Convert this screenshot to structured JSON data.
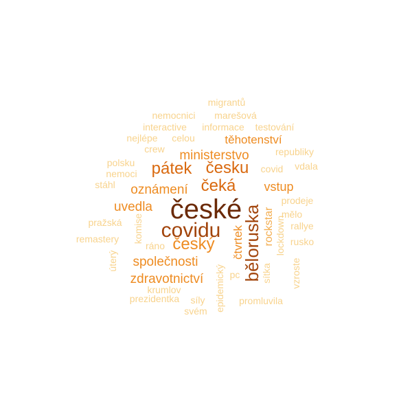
{
  "palette": {
    "darkest": "#6b2a07",
    "dark": "#a2450c",
    "strong": "#d9690f",
    "medium": "#ee8c22",
    "mid_light": "#f3ad4f",
    "light": "#f8d38d",
    "lightest": "#fbe4b0"
  },
  "words": [
    {
      "text": "české",
      "color": "darkest"
    },
    {
      "text": "covidu",
      "color": "dark"
    },
    {
      "text": "běloruska",
      "color": "dark"
    },
    {
      "text": "česku",
      "color": "strong"
    },
    {
      "text": "pátek",
      "color": "strong"
    },
    {
      "text": "čeká",
      "color": "strong"
    },
    {
      "text": "český",
      "color": "medium"
    },
    {
      "text": "oznámení",
      "color": "medium"
    },
    {
      "text": "ministerstvo",
      "color": "medium"
    },
    {
      "text": "těhotenství",
      "color": "medium"
    },
    {
      "text": "uvedla",
      "color": "medium"
    },
    {
      "text": "vstup",
      "color": "medium"
    },
    {
      "text": "společnosti",
      "color": "medium"
    },
    {
      "text": "zdravotnictví",
      "color": "medium"
    },
    {
      "text": "čtvrtek",
      "color": "medium"
    },
    {
      "text": "rockstar",
      "color": "mid_light"
    },
    {
      "text": "migrantů",
      "color": "light"
    },
    {
      "text": "nemocnici",
      "color": "light"
    },
    {
      "text": "marešová",
      "color": "light"
    },
    {
      "text": "interactive",
      "color": "light"
    },
    {
      "text": "informace",
      "color": "light"
    },
    {
      "text": "testování",
      "color": "light"
    },
    {
      "text": "nejlépe",
      "color": "light"
    },
    {
      "text": "celou",
      "color": "light"
    },
    {
      "text": "crew",
      "color": "light"
    },
    {
      "text": "republiky",
      "color": "light"
    },
    {
      "text": "polsku",
      "color": "light"
    },
    {
      "text": "nemoci",
      "color": "light"
    },
    {
      "text": "covid",
      "color": "light"
    },
    {
      "text": "vdala",
      "color": "light"
    },
    {
      "text": "stáhl",
      "color": "light"
    },
    {
      "text": "prodeje",
      "color": "light"
    },
    {
      "text": "pražská",
      "color": "light"
    },
    {
      "text": "mělo",
      "color": "light"
    },
    {
      "text": "rallye",
      "color": "light"
    },
    {
      "text": "remastery",
      "color": "light"
    },
    {
      "text": "komise",
      "color": "light"
    },
    {
      "text": "ráno",
      "color": "light"
    },
    {
      "text": "rusko",
      "color": "light"
    },
    {
      "text": "úterý",
      "color": "light"
    },
    {
      "text": "lockdown",
      "color": "light"
    },
    {
      "text": "vzroste",
      "color": "light"
    },
    {
      "text": "epidemický",
      "color": "light"
    },
    {
      "text": "pc",
      "color": "light"
    },
    {
      "text": "sítka",
      "color": "light"
    },
    {
      "text": "krumlov",
      "color": "light"
    },
    {
      "text": "prezidentka",
      "color": "light"
    },
    {
      "text": "síly",
      "color": "light"
    },
    {
      "text": "promluvila",
      "color": "light"
    },
    {
      "text": "svém",
      "color": "light"
    }
  ]
}
